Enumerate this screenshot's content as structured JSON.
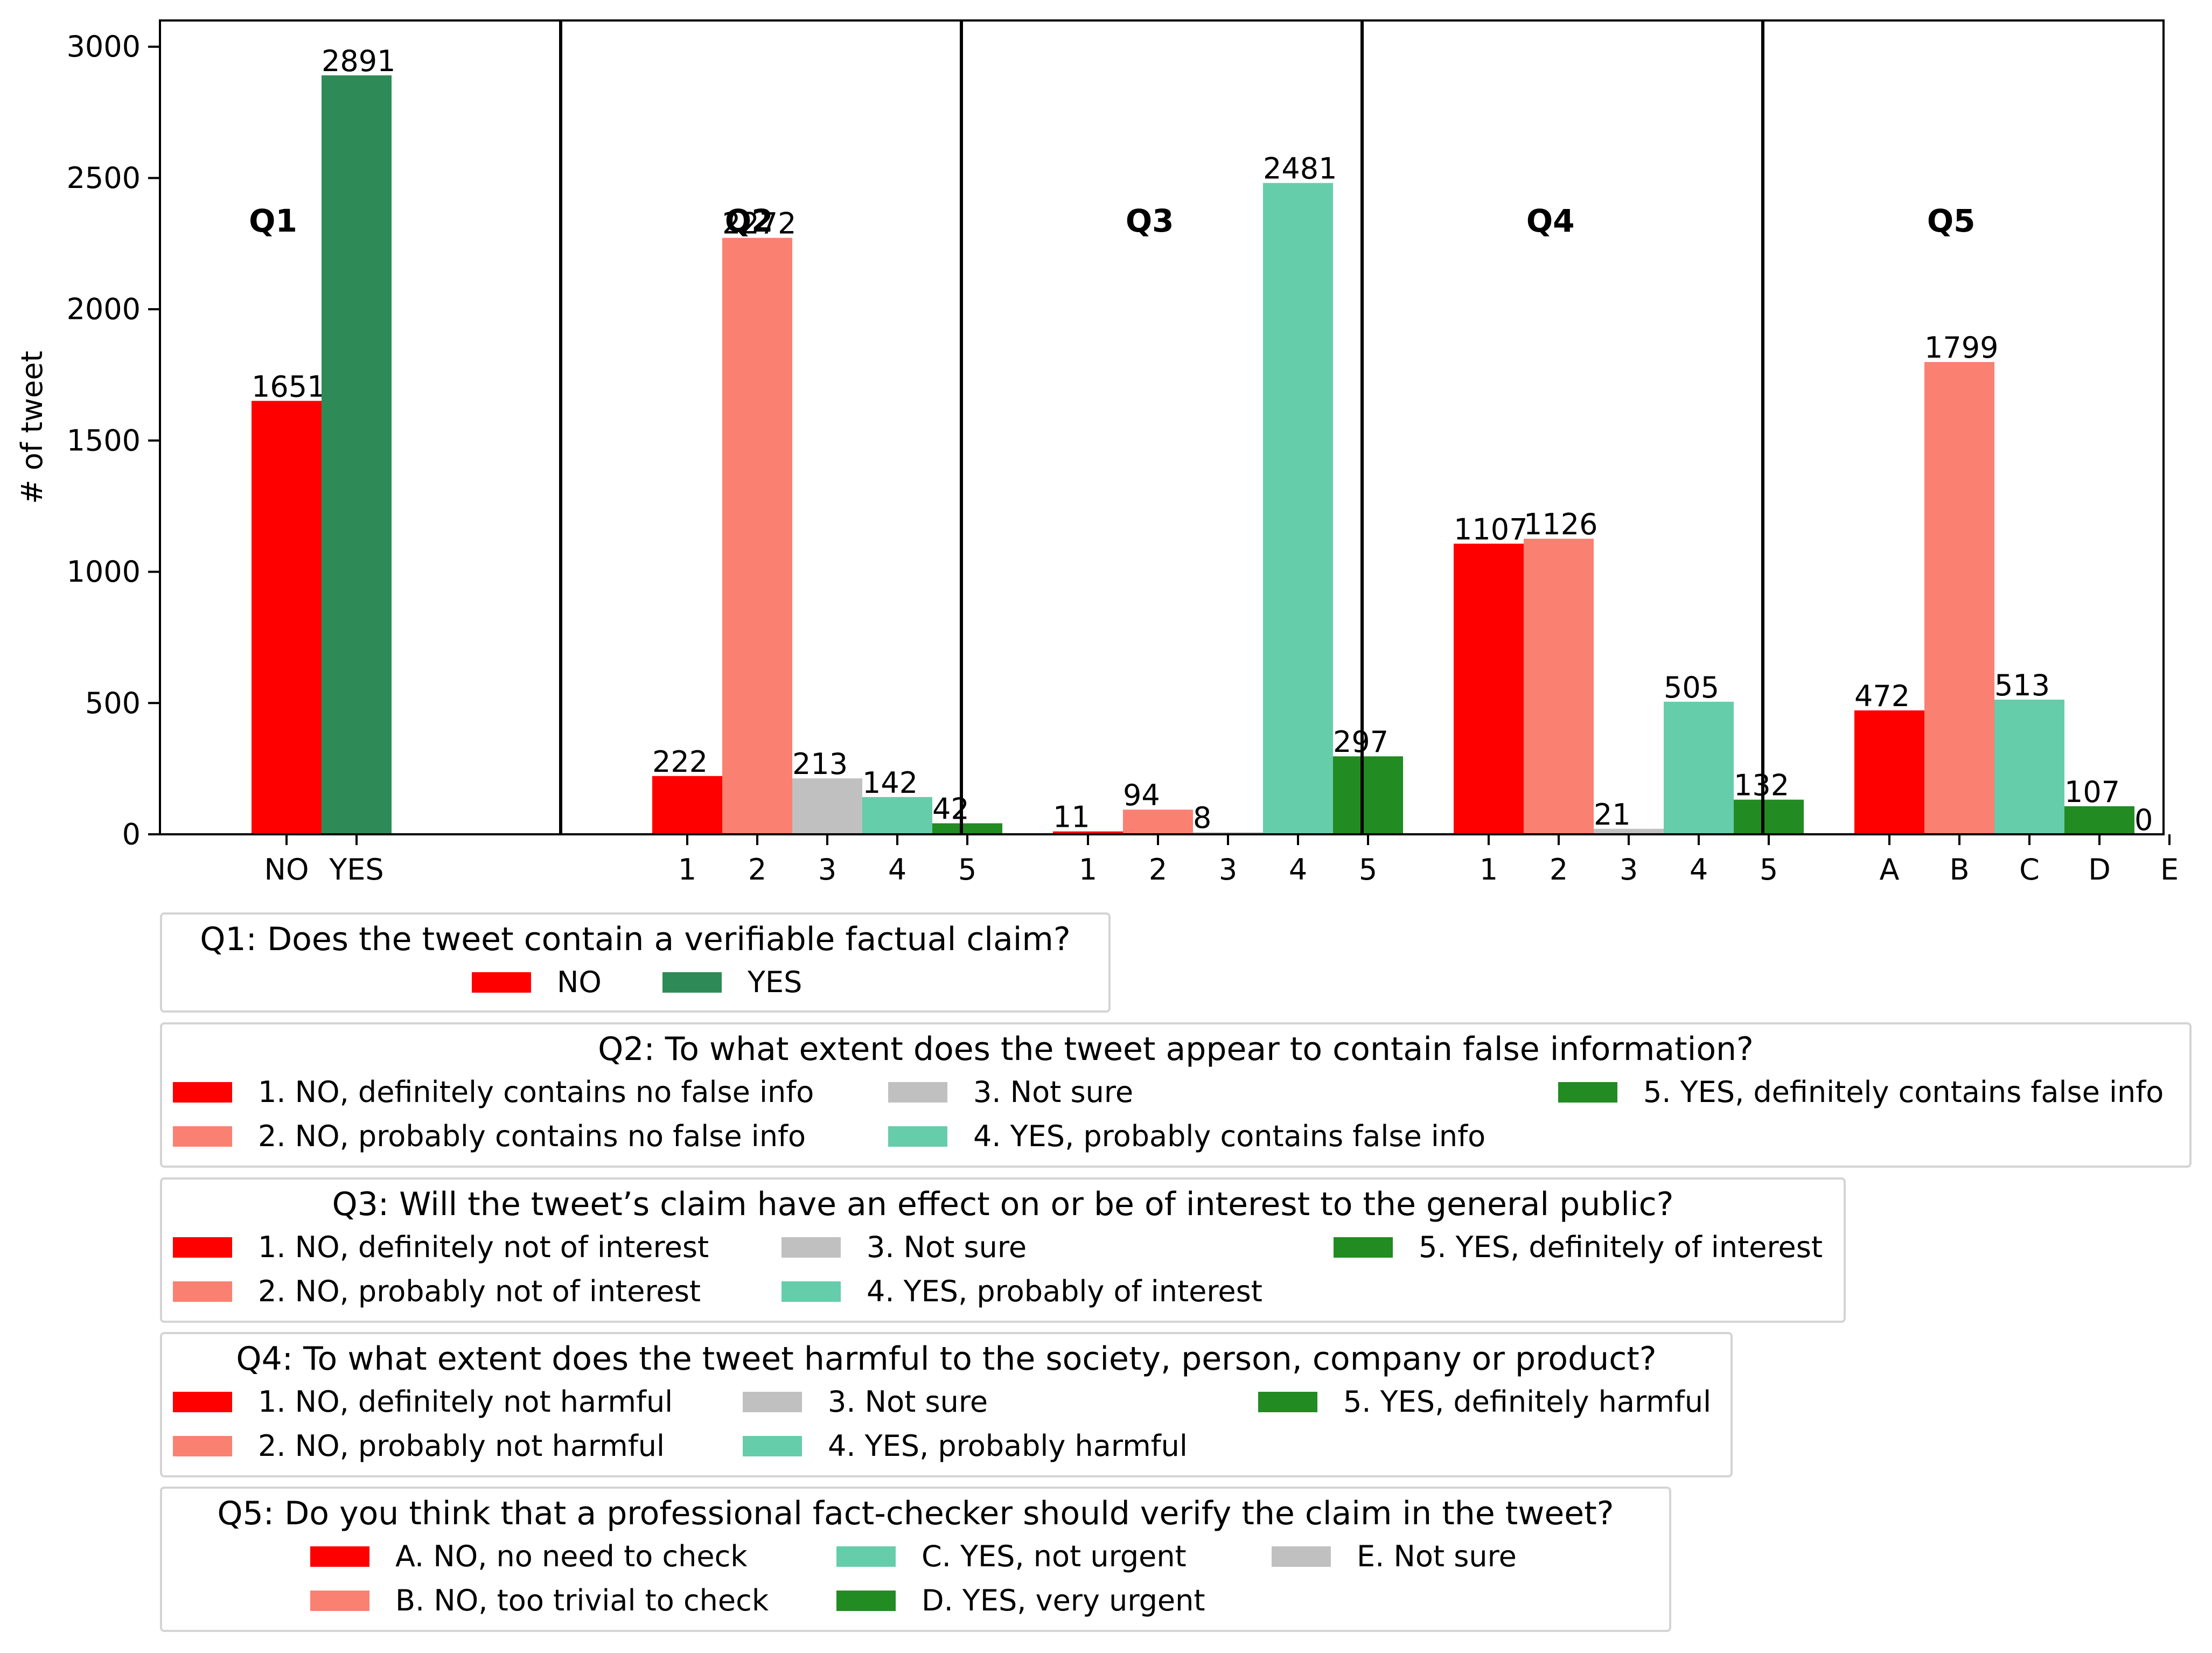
{
  "chart_data": {
    "type": "bar",
    "ylabel": "# of tweet",
    "ylim": [
      0,
      3100
    ],
    "yticks": [
      0,
      500,
      1000,
      1500,
      2000,
      2500,
      3000
    ],
    "colors": {
      "red": "#ff0000",
      "salmon": "#fa8072",
      "gray": "#c0c0c0",
      "aquamarine": "#66cdaa",
      "forestgreen": "#228b22",
      "seagreen": "#2e8b57"
    },
    "panels": [
      {
        "title": "Q1",
        "categories": [
          "NO",
          "YES"
        ],
        "values": [
          1651,
          2891
        ],
        "colors": [
          "#ff0000",
          "#2e8b57"
        ]
      },
      {
        "title": "Q2",
        "categories": [
          "1",
          "2",
          "3",
          "4",
          "5"
        ],
        "values": [
          222,
          2272,
          213,
          142,
          42
        ],
        "colors": [
          "#ff0000",
          "#fa8072",
          "#c0c0c0",
          "#66cdaa",
          "#228b22"
        ]
      },
      {
        "title": "Q3",
        "categories": [
          "1",
          "2",
          "3",
          "4",
          "5"
        ],
        "values": [
          11,
          94,
          8,
          2481,
          297
        ],
        "colors": [
          "#ff0000",
          "#fa8072",
          "#c0c0c0",
          "#66cdaa",
          "#228b22"
        ]
      },
      {
        "title": "Q4",
        "categories": [
          "1",
          "2",
          "3",
          "4",
          "5"
        ],
        "values": [
          1107,
          1126,
          21,
          505,
          132
        ],
        "colors": [
          "#ff0000",
          "#fa8072",
          "#c0c0c0",
          "#66cdaa",
          "#228b22"
        ]
      },
      {
        "title": "Q5",
        "categories": [
          "A",
          "B",
          "C",
          "D",
          "E"
        ],
        "values": [
          472,
          1799,
          513,
          107,
          0
        ],
        "colors": [
          "#ff0000",
          "#fa8072",
          "#66cdaa",
          "#228b22",
          "#c0c0c0"
        ]
      }
    ]
  },
  "legends": {
    "q1": {
      "title": "Q1: Does the tweet contain a verifiable factual claim?",
      "items": [
        {
          "label": "NO",
          "color": "#ff0000"
        },
        {
          "label": "YES",
          "color": "#2e8b57"
        }
      ]
    },
    "q2": {
      "title": "Q2: To what extent does the tweet appear to contain false information?",
      "items": [
        {
          "label": "1. NO, definitely contains no false info",
          "color": "#ff0000"
        },
        {
          "label": "2. NO, probably contains no false info",
          "color": "#fa8072"
        },
        {
          "label": "3. Not sure",
          "color": "#c0c0c0"
        },
        {
          "label": "4. YES, probably contains false info",
          "color": "#66cdaa"
        },
        {
          "label": "5. YES, definitely contains false info",
          "color": "#228b22"
        }
      ]
    },
    "q3": {
      "title": "Q3: Will the tweet’s claim have an effect on or be of interest to the general public?",
      "items": [
        {
          "label": "1. NO, definitely not of interest",
          "color": "#ff0000"
        },
        {
          "label": "2. NO, probably not of interest",
          "color": "#fa8072"
        },
        {
          "label": "3. Not sure",
          "color": "#c0c0c0"
        },
        {
          "label": "4. YES, probably of interest",
          "color": "#66cdaa"
        },
        {
          "label": "5. YES, definitely of interest",
          "color": "#228b22"
        }
      ]
    },
    "q4": {
      "title": "Q4: To what extent does the tweet harmful to the society, person, company or product?",
      "items": [
        {
          "label": "1. NO, definitely not harmful",
          "color": "#ff0000"
        },
        {
          "label": "2. NO, probably not harmful",
          "color": "#fa8072"
        },
        {
          "label": "3. Not sure",
          "color": "#c0c0c0"
        },
        {
          "label": "4. YES, probably harmful",
          "color": "#66cdaa"
        },
        {
          "label": "5. YES, definitely harmful",
          "color": "#228b22"
        }
      ]
    },
    "q5": {
      "title": "Q5: Do you think that a professional fact-checker should verify the claim in the tweet?",
      "items": [
        {
          "label": "A. NO, no need to check",
          "color": "#ff0000"
        },
        {
          "label": "B. NO, too trivial to check",
          "color": "#fa8072"
        },
        {
          "label": "C. YES, not urgent",
          "color": "#66cdaa"
        },
        {
          "label": "D. YES, very urgent",
          "color": "#228b22"
        },
        {
          "label": "E. Not sure",
          "color": "#c0c0c0"
        }
      ]
    }
  }
}
